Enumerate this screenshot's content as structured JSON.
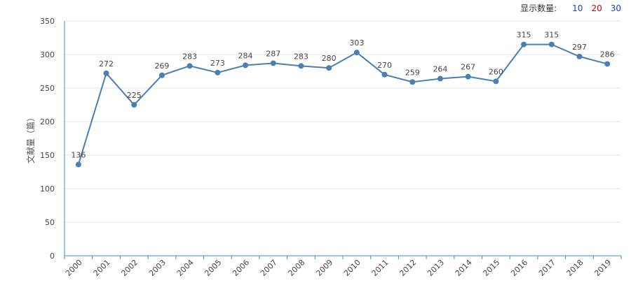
{
  "controls": {
    "label": "显示数量:",
    "options": [
      {
        "text": "10",
        "color": "#1a3fd6"
      },
      {
        "text": "20",
        "color": "#cc0000"
      },
      {
        "text": "30",
        "color": "#1a3fd6"
      }
    ]
  },
  "chart_data": {
    "type": "line",
    "title": "",
    "xlabel": "",
    "ylabel": "文献量（篇）",
    "ylim": [
      0,
      350
    ],
    "yticks": [
      0,
      50,
      100,
      150,
      200,
      250,
      300,
      350
    ],
    "grid": true,
    "x": [
      "2000",
      "2001",
      "2002",
      "2003",
      "2004",
      "2005",
      "2006",
      "2007",
      "2008",
      "2009",
      "2010",
      "2011",
      "2012",
      "2013",
      "2014",
      "2015",
      "2016",
      "2017",
      "2018",
      "2019"
    ],
    "series": [
      {
        "line_color": "#4a7fb0",
        "values": [
          136,
          272,
          225,
          269,
          283,
          273,
          284,
          287,
          283,
          280,
          303,
          270,
          259,
          264,
          267,
          260,
          315,
          315,
          297,
          286
        ]
      }
    ]
  }
}
